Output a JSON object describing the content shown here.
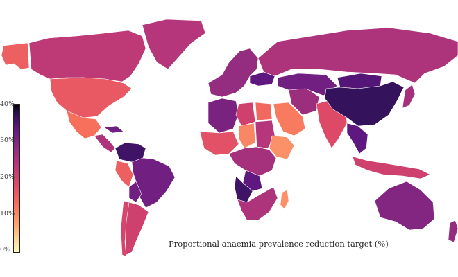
{
  "map": {
    "caption": "Proportional anaemia prevalence reduction target (%)",
    "colorbar": {
      "ticks": [
        "0%",
        "10%",
        "20%",
        "30%",
        "40%"
      ],
      "colors": [
        "#fcfdbf",
        "#fea772",
        "#f6705c",
        "#de4968",
        "#b5367a",
        "#8c2981",
        "#5f187f",
        "#2a1053",
        "#000004"
      ]
    },
    "regions": [
      {
        "name": "canada",
        "value": 19
      },
      {
        "name": "alaska",
        "value": 12
      },
      {
        "name": "greenland",
        "value": 20
      },
      {
        "name": "usa",
        "value": 13
      },
      {
        "name": "mexico",
        "value": 10
      },
      {
        "name": "central-america",
        "value": 21
      },
      {
        "name": "cuba",
        "value": 28
      },
      {
        "name": "colombia-venezuela",
        "value": 33
      },
      {
        "name": "peru",
        "value": 12
      },
      {
        "name": "brazil",
        "value": 28
      },
      {
        "name": "bolivia",
        "value": 28
      },
      {
        "name": "argentina",
        "value": 17
      },
      {
        "name": "chile",
        "value": 16
      },
      {
        "name": "russia",
        "value": 21
      },
      {
        "name": "europe",
        "value": 24
      },
      {
        "name": "ukraine",
        "value": 30
      },
      {
        "name": "north-africa",
        "value": 27
      },
      {
        "name": "libya",
        "value": 17
      },
      {
        "name": "egypt",
        "value": 11
      },
      {
        "name": "west-africa",
        "value": 14
      },
      {
        "name": "chad",
        "value": 8
      },
      {
        "name": "sudan",
        "value": 20
      },
      {
        "name": "ethiopia",
        "value": 7
      },
      {
        "name": "central-africa",
        "value": 22
      },
      {
        "name": "congo",
        "value": 30
      },
      {
        "name": "angola",
        "value": 33
      },
      {
        "name": "southern-africa",
        "value": 21
      },
      {
        "name": "madagascar",
        "value": 7
      },
      {
        "name": "arabia",
        "value": 9
      },
      {
        "name": "iran",
        "value": 23
      },
      {
        "name": "central-asia",
        "value": 28
      },
      {
        "name": "india",
        "value": 15
      },
      {
        "name": "china",
        "value": 34
      },
      {
        "name": "mongolia",
        "value": 31
      },
      {
        "name": "southeast-asia",
        "value": 30
      },
      {
        "name": "indonesia",
        "value": 17
      },
      {
        "name": "japan",
        "value": 22
      },
      {
        "name": "australia",
        "value": 26
      },
      {
        "name": "new-zealand",
        "value": 24
      }
    ]
  }
}
